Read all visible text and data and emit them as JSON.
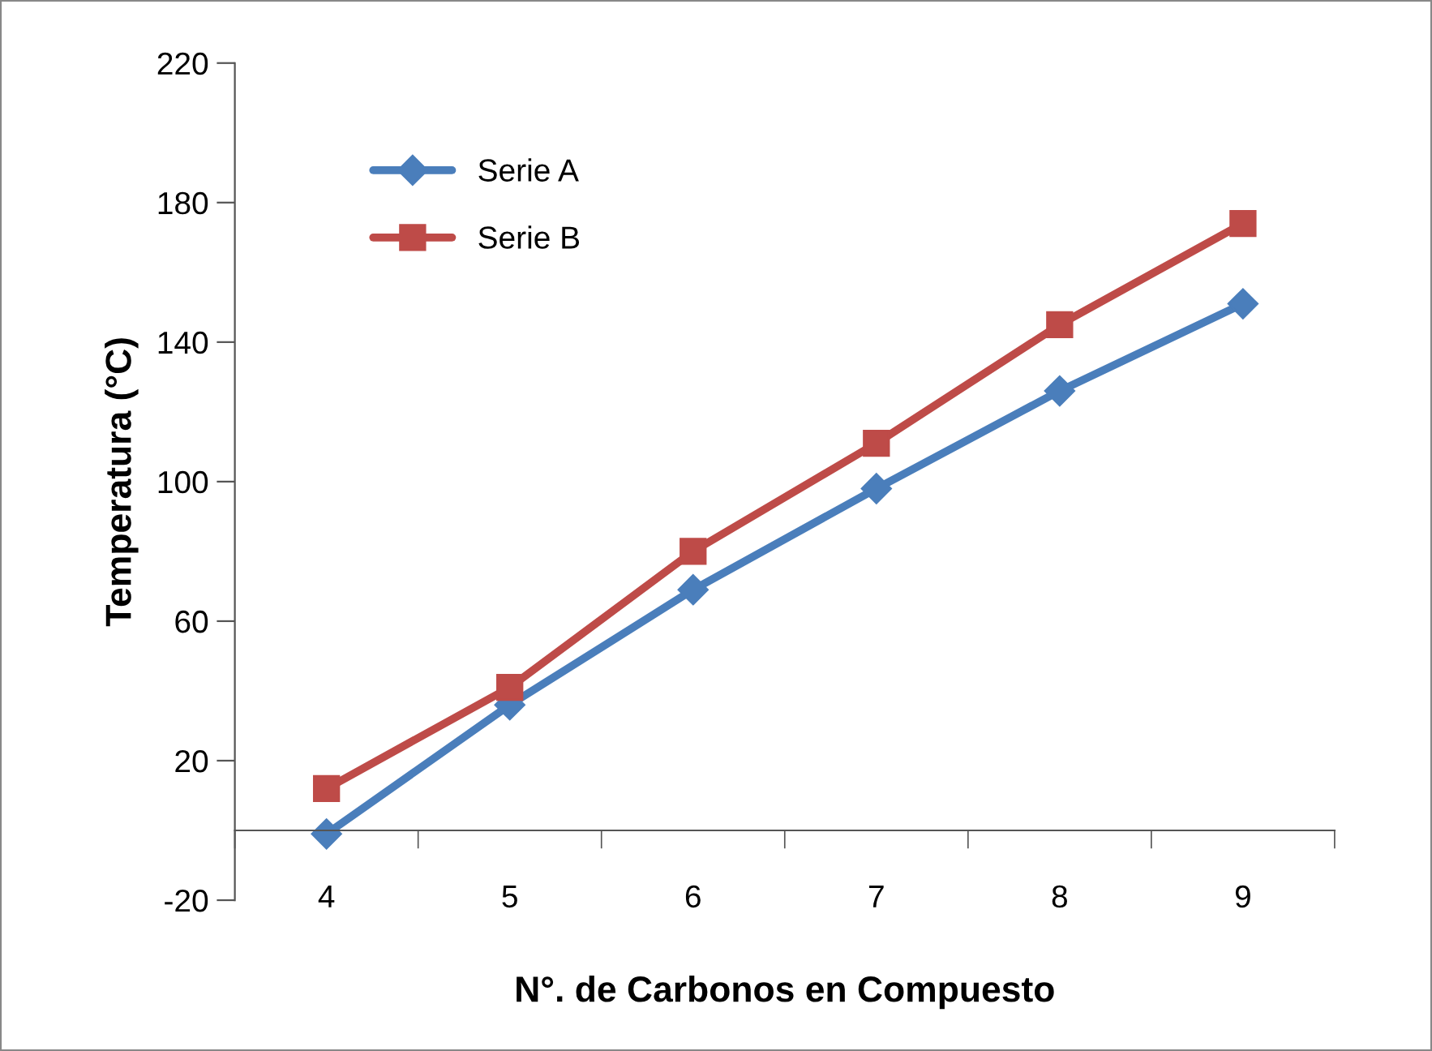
{
  "chart_data": {
    "type": "line",
    "xlabel": "N°. de Carbonos en Compuesto",
    "ylabel": "Temperatura (°C)",
    "categories": [
      "4",
      "5",
      "6",
      "7",
      "8",
      "9"
    ],
    "series": [
      {
        "name": "Serie A",
        "color": "#4a7ebb",
        "marker": "diamond",
        "values": [
          -1,
          36,
          69,
          98,
          126,
          151
        ]
      },
      {
        "name": "Serie B",
        "color": "#be4b48",
        "marker": "square",
        "values": [
          12,
          41,
          80,
          111,
          145,
          174
        ]
      }
    ],
    "ylim": [
      -20,
      220
    ],
    "yticks": [
      -20,
      20,
      60,
      100,
      140,
      180,
      220
    ],
    "grid": false,
    "legend": "top left",
    "line_style": "solid"
  }
}
